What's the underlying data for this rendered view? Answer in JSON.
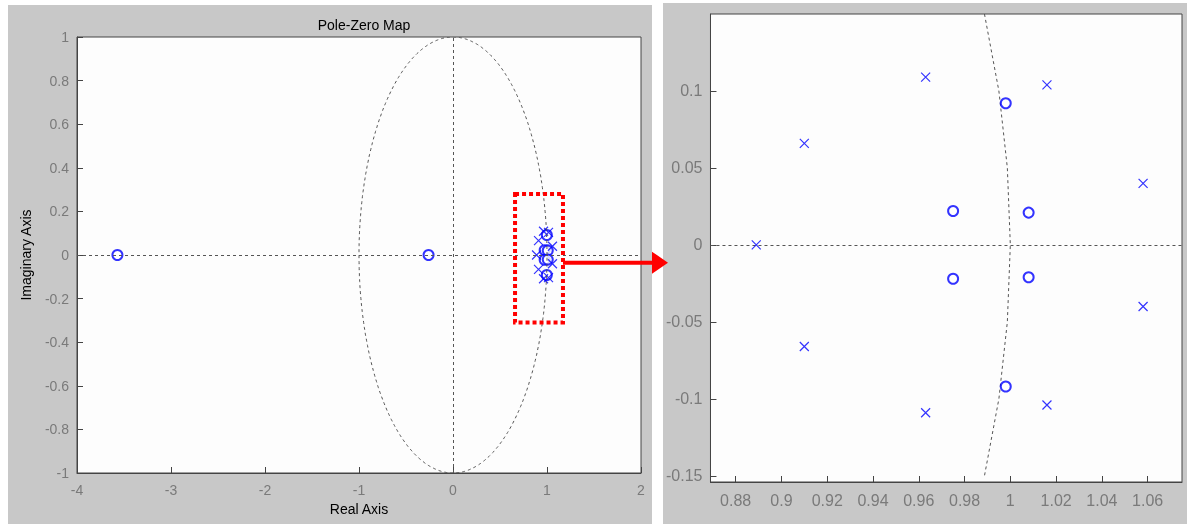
{
  "chart_data": [
    {
      "type": "scatter",
      "title": "Pole-Zero Map",
      "xlabel": "Real Axis",
      "ylabel": "Imaginary Axis",
      "xlim": [
        -4,
        2
      ],
      "ylim": [
        -1,
        1
      ],
      "xticks": [
        -4,
        -3,
        -2,
        -1,
        0,
        1,
        2
      ],
      "yticks": [
        -1,
        -0.8,
        -0.6,
        -0.4,
        -0.2,
        0,
        0.2,
        0.4,
        0.6,
        0.8,
        1
      ],
      "ref_lines": [
        {
          "axis": "x",
          "value": 0,
          "color": "#555555",
          "line_style": "dashed"
        },
        {
          "axis": "y",
          "value": 0,
          "color": "#555555",
          "line_style": "dashed"
        }
      ],
      "series": [
        {
          "color": "#0000ff",
          "marker": "circle",
          "x": [
            -3.57,
            -0.26,
            0.998,
            0.998,
            0.975,
            0.975,
            1.008,
            1.008
          ],
          "values": [
            0,
            0,
            0.092,
            -0.092,
            0.022,
            -0.022,
            0.021,
            -0.021
          ]
        },
        {
          "color": "#0000ff",
          "marker": "cross",
          "x": [
            0.889,
            0.91,
            0.91,
            0.963,
            0.963,
            1.016,
            1.016,
            1.058,
            1.058
          ],
          "values": [
            0,
            0.066,
            -0.066,
            0.109,
            -0.109,
            0.104,
            -0.104,
            0.04,
            -0.04
          ]
        }
      ]
    },
    {
      "type": "scatter",
      "xlim": [
        0.869,
        1.075
      ],
      "ylim": [
        -0.154,
        0.15
      ],
      "xticks": [
        0.88,
        0.9,
        0.92,
        0.94,
        0.96,
        0.98,
        1,
        1.02,
        1.04,
        1.06
      ],
      "yticks": [
        -0.15,
        -0.1,
        -0.05,
        0,
        0.05,
        0.1
      ],
      "ref_lines": [
        {
          "axis": "y",
          "value": 0,
          "color": "#555555",
          "line_style": "dashed"
        }
      ],
      "series": [
        {
          "type": "line",
          "color": "#555555",
          "line_style": "dashed",
          "marker": "none",
          "x": [
            0.9887,
            0.995,
            0.9987,
            1,
            0.9987,
            0.995,
            0.9887
          ],
          "values": [
            0.15,
            0.1,
            0.05,
            0,
            -0.05,
            -0.1,
            -0.15
          ]
        },
        {
          "color": "#0000ff",
          "marker": "circle",
          "x": [
            0.998,
            0.998,
            0.975,
            0.975,
            1.008,
            1.008
          ],
          "values": [
            0.092,
            -0.092,
            0.022,
            -0.022,
            0.021,
            -0.021
          ]
        },
        {
          "color": "#0000ff",
          "marker": "cross",
          "x": [
            0.889,
            0.91,
            0.91,
            0.963,
            0.963,
            1.016,
            1.016,
            1.058,
            1.058
          ],
          "values": [
            0,
            0.066,
            -0.066,
            0.109,
            -0.109,
            0.104,
            -0.104,
            0.04,
            -0.04
          ]
        }
      ]
    }
  ]
}
